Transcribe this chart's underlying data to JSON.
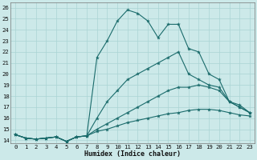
{
  "xlabel": "Humidex (Indice chaleur)",
  "xlim_min": -0.5,
  "xlim_max": 23.5,
  "ylim_min": 13.7,
  "ylim_max": 26.5,
  "xticks": [
    0,
    1,
    2,
    3,
    4,
    5,
    6,
    7,
    8,
    9,
    10,
    11,
    12,
    13,
    14,
    15,
    16,
    17,
    18,
    19,
    20,
    21,
    22,
    23
  ],
  "yticks": [
    14,
    15,
    16,
    17,
    18,
    19,
    20,
    21,
    22,
    23,
    24,
    25,
    26
  ],
  "bg_color": "#cce9e9",
  "line_color": "#1a6b6b",
  "grid_color": "#aad4d4",
  "lines": [
    {
      "x": [
        0,
        1,
        2,
        3,
        4,
        5,
        6,
        7,
        8,
        9,
        10,
        11,
        12,
        13,
        14,
        15,
        16,
        17,
        18,
        19,
        20,
        21,
        22,
        23
      ],
      "y": [
        14.5,
        14.2,
        14.1,
        14.2,
        14.3,
        13.9,
        14.3,
        14.4,
        21.5,
        23.0,
        24.8,
        25.8,
        25.5,
        24.8,
        23.3,
        24.5,
        24.5,
        22.3,
        22.0,
        20.0,
        19.5,
        17.5,
        17.2,
        16.5
      ]
    },
    {
      "x": [
        0,
        1,
        2,
        3,
        4,
        5,
        6,
        7,
        8,
        9,
        10,
        11,
        12,
        13,
        14,
        15,
        16,
        17,
        18,
        19,
        20,
        21,
        22,
        23
      ],
      "y": [
        14.5,
        14.2,
        14.1,
        14.2,
        14.3,
        13.9,
        14.3,
        14.4,
        16.0,
        17.5,
        18.5,
        19.5,
        20.0,
        20.5,
        21.0,
        21.5,
        22.0,
        20.0,
        19.5,
        19.0,
        18.8,
        17.5,
        17.0,
        16.5
      ]
    },
    {
      "x": [
        0,
        1,
        2,
        3,
        4,
        5,
        6,
        7,
        8,
        9,
        10,
        11,
        12,
        13,
        14,
        15,
        16,
        17,
        18,
        19,
        20,
        21,
        22,
        23
      ],
      "y": [
        14.5,
        14.2,
        14.1,
        14.2,
        14.3,
        13.9,
        14.3,
        14.4,
        15.0,
        15.5,
        16.0,
        16.5,
        17.0,
        17.5,
        18.0,
        18.5,
        18.8,
        18.8,
        19.0,
        18.8,
        18.5,
        17.5,
        17.0,
        16.5
      ]
    },
    {
      "x": [
        0,
        1,
        2,
        3,
        4,
        5,
        6,
        7,
        8,
        9,
        10,
        11,
        12,
        13,
        14,
        15,
        16,
        17,
        18,
        19,
        20,
        21,
        22,
        23
      ],
      "y": [
        14.5,
        14.2,
        14.1,
        14.2,
        14.3,
        13.9,
        14.3,
        14.4,
        14.8,
        15.0,
        15.3,
        15.6,
        15.8,
        16.0,
        16.2,
        16.4,
        16.5,
        16.7,
        16.8,
        16.8,
        16.7,
        16.5,
        16.3,
        16.2
      ]
    }
  ]
}
